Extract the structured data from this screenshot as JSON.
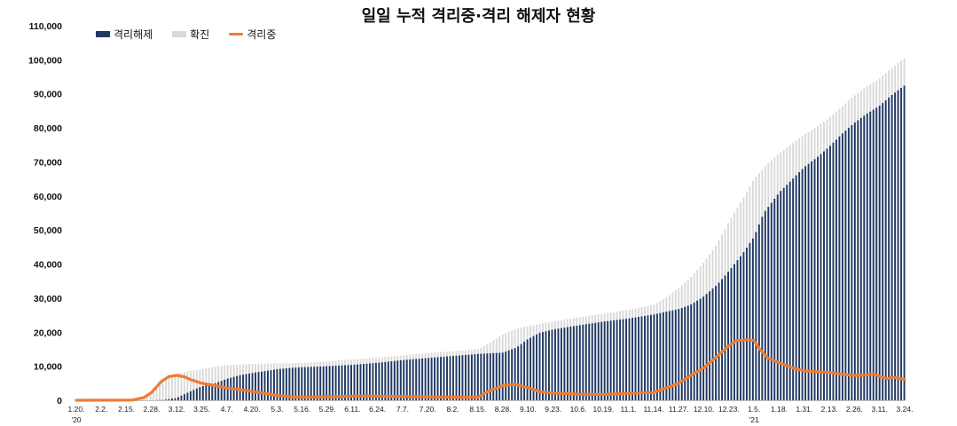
{
  "chart_data": {
    "type": "bar",
    "title": "일일 누적 격리중·격리 해제자 현황",
    "ylim": [
      0,
      110000
    ],
    "yticks": [
      "0",
      "10,000",
      "20,000",
      "30,000",
      "40,000",
      "50,000",
      "60,000",
      "70,000",
      "80,000",
      "90,000",
      "100,000",
      "110,000"
    ],
    "x_start": "2020-01-20",
    "x_end": "2021-03-24",
    "x_tick_labels": [
      {
        "date": "2020-01-20",
        "label": "1.20.",
        "sub": "'20"
      },
      {
        "date": "2020-02-02",
        "label": "2.2."
      },
      {
        "date": "2020-02-15",
        "label": "2.15."
      },
      {
        "date": "2020-02-28",
        "label": "2.28."
      },
      {
        "date": "2020-03-12",
        "label": "3.12."
      },
      {
        "date": "2020-03-25",
        "label": "3.25."
      },
      {
        "date": "2020-04-07",
        "label": "4.7."
      },
      {
        "date": "2020-04-20",
        "label": "4.20."
      },
      {
        "date": "2020-05-03",
        "label": "5.3."
      },
      {
        "date": "2020-05-16",
        "label": "5.16."
      },
      {
        "date": "2020-05-29",
        "label": "5.29."
      },
      {
        "date": "2020-06-11",
        "label": "6.11."
      },
      {
        "date": "2020-06-24",
        "label": "6.24."
      },
      {
        "date": "2020-07-07",
        "label": "7.7."
      },
      {
        "date": "2020-07-20",
        "label": "7.20."
      },
      {
        "date": "2020-08-02",
        "label": "8.2."
      },
      {
        "date": "2020-08-15",
        "label": "8.15."
      },
      {
        "date": "2020-08-28",
        "label": "8.28."
      },
      {
        "date": "2020-09-10",
        "label": "9.10."
      },
      {
        "date": "2020-09-23",
        "label": "9.23."
      },
      {
        "date": "2020-10-06",
        "label": "10.6."
      },
      {
        "date": "2020-10-19",
        "label": "10.19."
      },
      {
        "date": "2020-11-01",
        "label": "11.1."
      },
      {
        "date": "2020-11-14",
        "label": "11.14."
      },
      {
        "date": "2020-11-27",
        "label": "11.27."
      },
      {
        "date": "2020-12-10",
        "label": "12.10."
      },
      {
        "date": "2020-12-23",
        "label": "12.23."
      },
      {
        "date": "2021-01-05",
        "label": "1.5.",
        "sub": "'21"
      },
      {
        "date": "2021-01-18",
        "label": "1.18."
      },
      {
        "date": "2021-01-31",
        "label": "1.31."
      },
      {
        "date": "2021-02-13",
        "label": "2.13."
      },
      {
        "date": "2021-02-26",
        "label": "2.26."
      },
      {
        "date": "2021-03-11",
        "label": "3.11."
      },
      {
        "date": "2021-03-24",
        "label": "3.24."
      }
    ],
    "series": [
      {
        "name": "격리해제",
        "kind": "bar",
        "color": "#1f3864",
        "points": [
          [
            "2020-01-20",
            0
          ],
          [
            "2020-02-28",
            0
          ],
          [
            "2020-03-05",
            100
          ],
          [
            "2020-03-12",
            700
          ],
          [
            "2020-03-19",
            2600
          ],
          [
            "2020-03-25",
            4100
          ],
          [
            "2020-04-01",
            5000
          ],
          [
            "2020-04-07",
            6300
          ],
          [
            "2020-04-14",
            7400
          ],
          [
            "2020-04-20",
            8000
          ],
          [
            "2020-04-27",
            8600
          ],
          [
            "2020-05-03",
            9100
          ],
          [
            "2020-05-10",
            9500
          ],
          [
            "2020-05-16",
            9700
          ],
          [
            "2020-05-29",
            10000
          ],
          [
            "2020-06-11",
            10400
          ],
          [
            "2020-06-24",
            11000
          ],
          [
            "2020-07-07",
            11800
          ],
          [
            "2020-07-20",
            12400
          ],
          [
            "2020-08-02",
            13000
          ],
          [
            "2020-08-15",
            13600
          ],
          [
            "2020-08-28",
            14000
          ],
          [
            "2020-09-04",
            15500
          ],
          [
            "2020-09-10",
            18000
          ],
          [
            "2020-09-16",
            19800
          ],
          [
            "2020-09-23",
            20800
          ],
          [
            "2020-10-06",
            22000
          ],
          [
            "2020-10-19",
            23100
          ],
          [
            "2020-11-01",
            24000
          ],
          [
            "2020-11-14",
            25200
          ],
          [
            "2020-11-27",
            26800
          ],
          [
            "2020-12-03",
            28000
          ],
          [
            "2020-12-10",
            30500
          ],
          [
            "2020-12-17",
            34000
          ],
          [
            "2020-12-23",
            38000
          ],
          [
            "2020-12-30",
            43000
          ],
          [
            "2021-01-05",
            48000
          ],
          [
            "2021-01-10",
            55000
          ],
          [
            "2021-01-18",
            61000
          ],
          [
            "2021-01-25",
            65000
          ],
          [
            "2021-01-31",
            68500
          ],
          [
            "2021-02-07",
            71500
          ],
          [
            "2021-02-13",
            74500
          ],
          [
            "2021-02-20",
            78500
          ],
          [
            "2021-02-26",
            81500
          ],
          [
            "2021-03-04",
            84000
          ],
          [
            "2021-03-11",
            86500
          ],
          [
            "2021-03-17",
            89500
          ],
          [
            "2021-03-24",
            92500
          ]
        ]
      },
      {
        "name": "확진",
        "kind": "bar",
        "color": "#d9d9d9",
        "points": [
          [
            "2020-01-20",
            0
          ],
          [
            "2020-02-18",
            50
          ],
          [
            "2020-02-24",
            800
          ],
          [
            "2020-02-28",
            2300
          ],
          [
            "2020-03-04",
            5600
          ],
          [
            "2020-03-08",
            7100
          ],
          [
            "2020-03-12",
            7900
          ],
          [
            "2020-03-19",
            8600
          ],
          [
            "2020-03-25",
            9100
          ],
          [
            "2020-04-01",
            9900
          ],
          [
            "2020-04-07",
            10300
          ],
          [
            "2020-04-20",
            10700
          ],
          [
            "2020-05-03",
            10800
          ],
          [
            "2020-05-16",
            11000
          ],
          [
            "2020-05-29",
            11400
          ],
          [
            "2020-06-11",
            12000
          ],
          [
            "2020-06-24",
            12500
          ],
          [
            "2020-07-07",
            13200
          ],
          [
            "2020-07-20",
            13800
          ],
          [
            "2020-08-02",
            14400
          ],
          [
            "2020-08-15",
            15000
          ],
          [
            "2020-08-22",
            17200
          ],
          [
            "2020-08-28",
            19400
          ],
          [
            "2020-09-03",
            20800
          ],
          [
            "2020-09-10",
            21800
          ],
          [
            "2020-09-23",
            23100
          ],
          [
            "2020-10-06",
            24300
          ],
          [
            "2020-10-19",
            25400
          ],
          [
            "2020-11-01",
            26600
          ],
          [
            "2020-11-14",
            28000
          ],
          [
            "2020-11-20",
            30000
          ],
          [
            "2020-11-27",
            33000
          ],
          [
            "2020-12-03",
            36000
          ],
          [
            "2020-12-10",
            40500
          ],
          [
            "2020-12-17",
            46000
          ],
          [
            "2020-12-23",
            52500
          ],
          [
            "2020-12-30",
            59000
          ],
          [
            "2021-01-05",
            65000
          ],
          [
            "2021-01-12",
            69500
          ],
          [
            "2021-01-18",
            72500
          ],
          [
            "2021-01-25",
            75500
          ],
          [
            "2021-01-31",
            78000
          ],
          [
            "2021-02-07",
            80500
          ],
          [
            "2021-02-13",
            83000
          ],
          [
            "2021-02-20",
            86500
          ],
          [
            "2021-02-26",
            89500
          ],
          [
            "2021-03-04",
            92000
          ],
          [
            "2021-03-11",
            94500
          ],
          [
            "2021-03-17",
            97500
          ],
          [
            "2021-03-24",
            100500
          ]
        ]
      },
      {
        "name": "격리중",
        "kind": "line",
        "color": "#ed7d31",
        "points": [
          [
            "2020-01-20",
            0
          ],
          [
            "2020-02-18",
            50
          ],
          [
            "2020-02-24",
            800
          ],
          [
            "2020-02-28",
            2300
          ],
          [
            "2020-03-04",
            5500
          ],
          [
            "2020-03-08",
            7000
          ],
          [
            "2020-03-12",
            7300
          ],
          [
            "2020-03-16",
            6900
          ],
          [
            "2020-03-19",
            6100
          ],
          [
            "2020-03-25",
            5000
          ],
          [
            "2020-04-01",
            4300
          ],
          [
            "2020-04-07",
            3600
          ],
          [
            "2020-04-14",
            3100
          ],
          [
            "2020-04-20",
            2600
          ],
          [
            "2020-04-27",
            2000
          ],
          [
            "2020-05-03",
            1400
          ],
          [
            "2020-05-10",
            1000
          ],
          [
            "2020-05-16",
            900
          ],
          [
            "2020-05-29",
            1000
          ],
          [
            "2020-06-11",
            1200
          ],
          [
            "2020-06-24",
            1200
          ],
          [
            "2020-07-07",
            1100
          ],
          [
            "2020-07-20",
            1000
          ],
          [
            "2020-08-02",
            900
          ],
          [
            "2020-08-15",
            900
          ],
          [
            "2020-08-20",
            2500
          ],
          [
            "2020-08-28",
            4300
          ],
          [
            "2020-09-03",
            4700
          ],
          [
            "2020-09-10",
            3700
          ],
          [
            "2020-09-16",
            2500
          ],
          [
            "2020-09-23",
            2100
          ],
          [
            "2020-10-06",
            1800
          ],
          [
            "2020-10-19",
            1700
          ],
          [
            "2020-11-01",
            2000
          ],
          [
            "2020-11-14",
            2300
          ],
          [
            "2020-11-20",
            3500
          ],
          [
            "2020-11-27",
            5000
          ],
          [
            "2020-12-03",
            7200
          ],
          [
            "2020-12-10",
            9500
          ],
          [
            "2020-12-17",
            13000
          ],
          [
            "2020-12-23",
            16000
          ],
          [
            "2020-12-27",
            17500
          ],
          [
            "2021-01-01",
            17800
          ],
          [
            "2021-01-05",
            17500
          ],
          [
            "2021-01-08",
            15000
          ],
          [
            "2021-01-12",
            12500
          ],
          [
            "2021-01-18",
            11000
          ],
          [
            "2021-01-25",
            9500
          ],
          [
            "2021-01-31",
            8600
          ],
          [
            "2021-02-13",
            8200
          ],
          [
            "2021-02-20",
            7600
          ],
          [
            "2021-02-26",
            7300
          ],
          [
            "2021-03-04",
            7400
          ],
          [
            "2021-03-08",
            7800
          ],
          [
            "2021-03-11",
            7000
          ],
          [
            "2021-03-15",
            6300
          ],
          [
            "2021-03-18",
            6800
          ],
          [
            "2021-03-24",
            6100
          ]
        ]
      }
    ]
  }
}
